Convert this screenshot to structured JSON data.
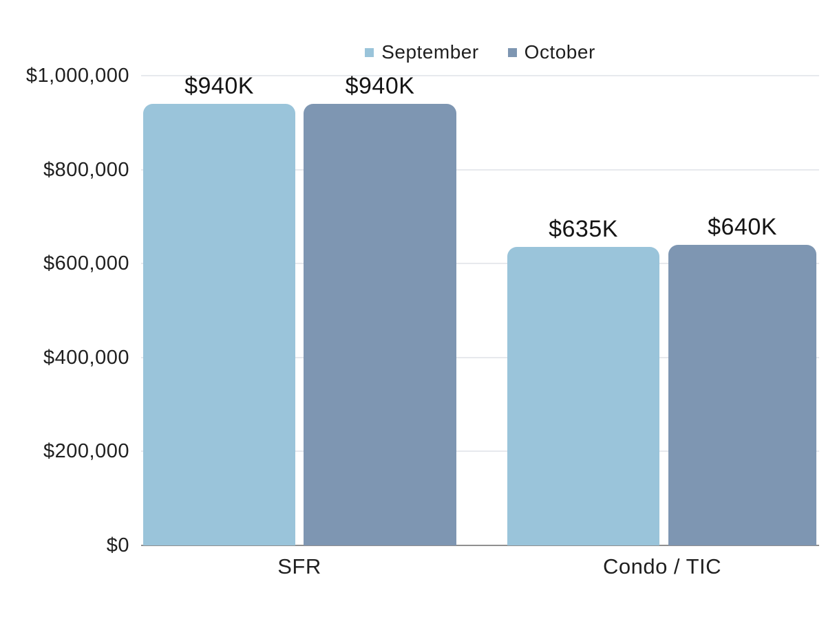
{
  "chart_data": {
    "type": "bar",
    "title": "",
    "categories": [
      "SFR",
      "Condo / TIC"
    ],
    "series": [
      {
        "name": "September",
        "color": "#9ac4da",
        "values": [
          940000,
          635000
        ],
        "labels": [
          "$940K",
          "$635K"
        ]
      },
      {
        "name": "October",
        "color": "#7e96b2",
        "values": [
          940000,
          640000
        ],
        "labels": [
          "$940K",
          "$640K"
        ]
      }
    ],
    "xlabel": "",
    "ylabel": "",
    "ylim": [
      0,
      1000000
    ],
    "yticks": [
      {
        "value": 0,
        "label": "$0"
      },
      {
        "value": 200000,
        "label": "$200,000"
      },
      {
        "value": 400000,
        "label": "$400,000"
      },
      {
        "value": 600000,
        "label": "$600,000"
      },
      {
        "value": 800000,
        "label": "$800,000"
      },
      {
        "value": 1000000,
        "label": "$1,000,000"
      }
    ],
    "legend_position": "top",
    "grid": true,
    "colors": {
      "grid": "#e7e9ed",
      "axis": "#8f8f8f",
      "text": "#1f1f1f",
      "background": "#ffffff"
    }
  }
}
